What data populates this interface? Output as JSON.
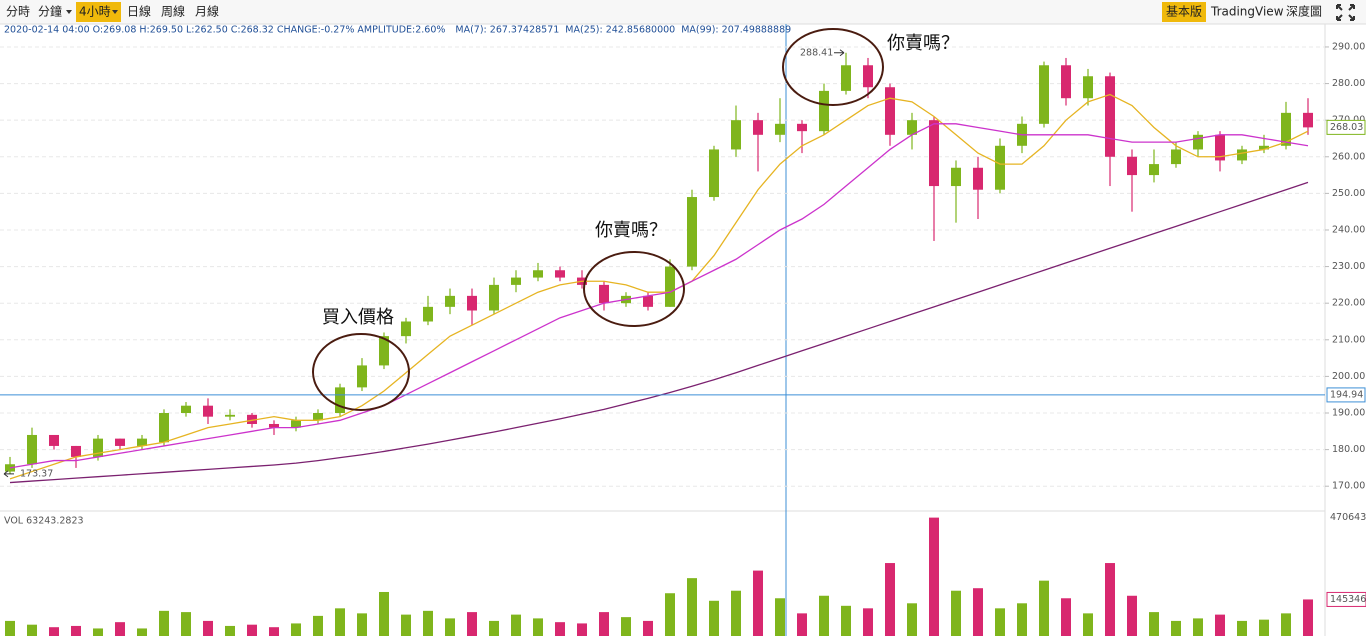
{
  "toolbar": {
    "left": [
      "分時",
      "分鐘",
      "4小時",
      "日線",
      "周線",
      "月線"
    ],
    "right": [
      "基本版",
      "TradingView",
      "深度圖"
    ]
  },
  "chart_data": {
    "type": "candlestick",
    "info": "2020-02-14 04:00  O:269.08 H:269.50 L:262.50 C:268.32 CHANGE:-0.27% AMPLITUDE:2.60%",
    "up_color": "#7fb51c",
    "down_color": "#d8286f",
    "open": [
      174,
      176,
      184,
      181,
      178,
      183,
      181,
      182,
      190,
      192,
      189,
      189.5,
      187,
      186,
      188,
      190,
      197,
      203,
      211,
      215,
      219,
      222,
      218,
      225,
      227,
      229,
      227,
      225,
      220,
      222,
      219,
      230,
      249,
      262,
      270,
      266,
      269,
      267,
      278,
      285,
      279,
      266,
      270,
      252,
      257,
      251,
      263,
      269,
      285,
      276,
      282,
      260,
      255,
      258,
      262,
      266,
      259,
      262,
      263,
      272
    ],
    "high": [
      178,
      186,
      183,
      181,
      184,
      183,
      184,
      191,
      193,
      194,
      191,
      190,
      188,
      189,
      191,
      198,
      205,
      212,
      216,
      222,
      224,
      224,
      227,
      229,
      231,
      230,
      229,
      226,
      223,
      223,
      232,
      251,
      263,
      274,
      272,
      276,
      270,
      280,
      288.41,
      287,
      280,
      272,
      271,
      259,
      260,
      265,
      271,
      286,
      287,
      284,
      283,
      262,
      262,
      264,
      267,
      267,
      263,
      266,
      275,
      276
    ],
    "low": [
      173.37,
      175,
      180,
      175,
      177,
      180,
      180,
      181,
      189,
      187,
      188,
      186,
      184,
      185,
      187,
      189,
      196,
      202,
      209,
      214,
      217,
      214,
      217,
      223,
      226,
      226,
      224,
      218,
      219,
      218,
      219,
      229,
      248,
      260,
      256,
      264,
      261,
      266,
      277,
      276,
      263,
      262,
      237,
      242,
      243,
      250,
      261,
      268,
      274,
      274,
      252,
      245,
      253,
      257,
      260,
      256,
      258,
      261,
      262,
      266
    ],
    "close": [
      176,
      184,
      181,
      178,
      183,
      181,
      183,
      190,
      192,
      189,
      189.5,
      187,
      186,
      188,
      190,
      197,
      203,
      211,
      215,
      219,
      222,
      218,
      225,
      227,
      229,
      227,
      225,
      220,
      222,
      219,
      230,
      249,
      262,
      270,
      266,
      269,
      267,
      278,
      285,
      279,
      266,
      270,
      252,
      257,
      251,
      263,
      269,
      285,
      276,
      282,
      260,
      255,
      258,
      262,
      266,
      259,
      262,
      263,
      272,
      268.03
    ],
    "volume": [
      60000,
      45000,
      35000,
      40000,
      30000,
      55000,
      30000,
      100000,
      95000,
      60000,
      40000,
      45000,
      35000,
      50000,
      80000,
      110000,
      90000,
      175000,
      85000,
      100000,
      70000,
      95000,
      60000,
      85000,
      70000,
      55000,
      50000,
      95000,
      75000,
      60000,
      170000,
      230000,
      140000,
      180000,
      260000,
      150000,
      90000,
      160000,
      120000,
      110000,
      290000,
      130000,
      470643.5,
      180000,
      190000,
      110000,
      130000,
      220000,
      150000,
      90000,
      290000,
      160000,
      95000,
      60000,
      70000,
      85000,
      60000,
      65000,
      90000,
      145346
    ],
    "series": [
      {
        "name": "MA(7): 267.37428571",
        "color": "#e6b422",
        "values": [
          172,
          174,
          176,
          178,
          179,
          180,
          181,
          182,
          184,
          186,
          187,
          188,
          189,
          188,
          188,
          189,
          192,
          196,
          201,
          206,
          211,
          214,
          217,
          220,
          223,
          225,
          226,
          226,
          225,
          223,
          223,
          226,
          233,
          242,
          251,
          258,
          263,
          266,
          270,
          274,
          276,
          275,
          271,
          266,
          261,
          258,
          258,
          263,
          270,
          275,
          277,
          274,
          268,
          263,
          260,
          260,
          261,
          262,
          264,
          267
        ]
      },
      {
        "name": "MA(25): 242.85680000",
        "color": "#cc33cc",
        "values": [
          175,
          176,
          177,
          177,
          178,
          179,
          180,
          181,
          182,
          183,
          184,
          185,
          186,
          186,
          187,
          188,
          190,
          192,
          195,
          198,
          201,
          204,
          207,
          210,
          213,
          216,
          218,
          220,
          221,
          222,
          223,
          226,
          229,
          232,
          236,
          240,
          243,
          247,
          252,
          257,
          262,
          266,
          269,
          269,
          268,
          267,
          266,
          266,
          266,
          266,
          265,
          264,
          264,
          264,
          265,
          266,
          266,
          265,
          264,
          263
        ]
      },
      {
        "name": "MA(99): 207.49888889",
        "color": "#7b2170",
        "values": [
          171,
          171.4,
          171.8,
          172.2,
          172.6,
          173,
          173.4,
          173.8,
          174.2,
          174.6,
          175,
          175.4,
          175.8,
          176.3,
          177,
          177.8,
          178.6,
          179.5,
          180.5,
          181.5,
          182.6,
          183.7,
          184.8,
          186,
          187.2,
          188.4,
          189.7,
          191,
          192.5,
          194,
          195.6,
          197.3,
          199.1,
          201,
          203,
          205,
          207,
          209,
          211,
          213,
          215,
          217,
          219,
          221,
          223,
          225,
          227,
          229,
          231,
          233,
          235,
          237,
          239,
          241,
          243,
          245,
          247,
          249,
          251,
          253
        ]
      }
    ],
    "ylim": [
      163.5,
      296
    ],
    "yticks": [
      {
        "value": 170,
        "label": "170.00"
      },
      {
        "value": 180,
        "label": "180.00"
      },
      {
        "value": 190,
        "label": "190.00"
      },
      {
        "value": 200,
        "label": "200.00"
      },
      {
        "value": 210,
        "label": "210.00"
      },
      {
        "value": 220,
        "label": "220.00"
      },
      {
        "value": 230,
        "label": "230.00"
      },
      {
        "value": 240,
        "label": "240.00"
      },
      {
        "value": 250,
        "label": "250.00"
      },
      {
        "value": 260,
        "label": "260.00"
      },
      {
        "value": 270,
        "label": "270.00"
      },
      {
        "value": 280,
        "label": "280.00"
      },
      {
        "value": 290,
        "label": "290.00"
      }
    ],
    "grid": true,
    "last_price": {
      "value": 268.03,
      "label": "268.03"
    },
    "crosshair_price": {
      "value": 194.94,
      "label": "194.94"
    },
    "min_marker": 173.37,
    "max_marker": 288.41,
    "volume_title": "VOL 63243.2823",
    "vlim": [
      0,
      485000
    ],
    "vticks": [
      {
        "value": 470643.5,
        "label": "470643.50"
      }
    ],
    "volume_marker": 145346,
    "annotations": [
      "買入價格",
      "你賣嗎？",
      "你賣嗎？"
    ]
  }
}
